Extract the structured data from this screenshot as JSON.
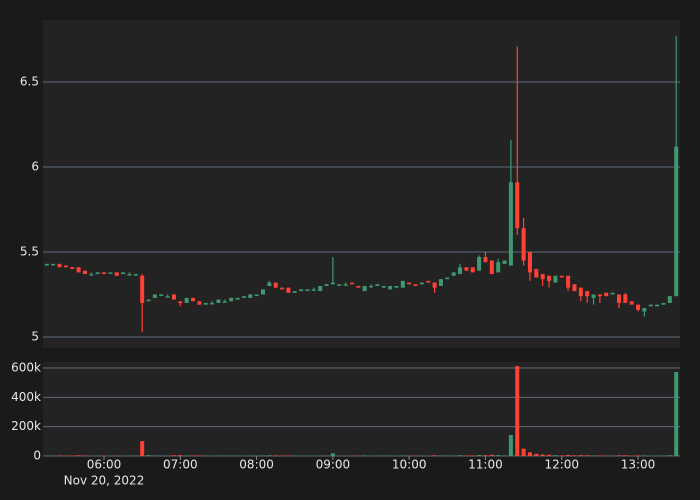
{
  "chart_data": {
    "type": "candlestick",
    "x": [
      "2022-11-20 05:15",
      "2022-11-20 05:20",
      "2022-11-20 05:25",
      "2022-11-20 05:30",
      "2022-11-20 05:35",
      "2022-11-20 05:40",
      "2022-11-20 05:45",
      "2022-11-20 05:50",
      "2022-11-20 05:55",
      "2022-11-20 06:00",
      "2022-11-20 06:05",
      "2022-11-20 06:10",
      "2022-11-20 06:15",
      "2022-11-20 06:20",
      "2022-11-20 06:25",
      "2022-11-20 06:30",
      "2022-11-20 06:35",
      "2022-11-20 06:40",
      "2022-11-20 06:45",
      "2022-11-20 06:50",
      "2022-11-20 06:55",
      "2022-11-20 07:00",
      "2022-11-20 07:05",
      "2022-11-20 07:10",
      "2022-11-20 07:15",
      "2022-11-20 07:20",
      "2022-11-20 07:25",
      "2022-11-20 07:30",
      "2022-11-20 07:35",
      "2022-11-20 07:40",
      "2022-11-20 07:45",
      "2022-11-20 07:50",
      "2022-11-20 07:55",
      "2022-11-20 08:00",
      "2022-11-20 08:05",
      "2022-11-20 08:10",
      "2022-11-20 08:15",
      "2022-11-20 08:20",
      "2022-11-20 08:25",
      "2022-11-20 08:30",
      "2022-11-20 08:35",
      "2022-11-20 08:40",
      "2022-11-20 08:45",
      "2022-11-20 08:50",
      "2022-11-20 08:55",
      "2022-11-20 09:00",
      "2022-11-20 09:05",
      "2022-11-20 09:10",
      "2022-11-20 09:15",
      "2022-11-20 09:20",
      "2022-11-20 09:25",
      "2022-11-20 09:30",
      "2022-11-20 09:35",
      "2022-11-20 09:40",
      "2022-11-20 09:45",
      "2022-11-20 09:50",
      "2022-11-20 09:55",
      "2022-11-20 10:00",
      "2022-11-20 10:05",
      "2022-11-20 10:10",
      "2022-11-20 10:15",
      "2022-11-20 10:20",
      "2022-11-20 10:25",
      "2022-11-20 10:30",
      "2022-11-20 10:35",
      "2022-11-20 10:40",
      "2022-11-20 10:45",
      "2022-11-20 10:50",
      "2022-11-20 10:55",
      "2022-11-20 11:00",
      "2022-11-20 11:05",
      "2022-11-20 11:10",
      "2022-11-20 11:15",
      "2022-11-20 11:20",
      "2022-11-20 11:25",
      "2022-11-20 11:30",
      "2022-11-20 11:35",
      "2022-11-20 11:40",
      "2022-11-20 11:45",
      "2022-11-20 11:50",
      "2022-11-20 11:55",
      "2022-11-20 12:00",
      "2022-11-20 12:05",
      "2022-11-20 12:10",
      "2022-11-20 12:15",
      "2022-11-20 12:20",
      "2022-11-20 12:25",
      "2022-11-20 12:30",
      "2022-11-20 12:35",
      "2022-11-20 12:40",
      "2022-11-20 12:45",
      "2022-11-20 12:50",
      "2022-11-20 12:55",
      "2022-11-20 13:00",
      "2022-11-20 13:05",
      "2022-11-20 13:10",
      "2022-11-20 13:15",
      "2022-11-20 13:20",
      "2022-11-20 13:25",
      "2022-11-20 13:30"
    ],
    "open": [
      5.42,
      5.43,
      5.43,
      5.42,
      5.41,
      5.41,
      5.39,
      5.37,
      5.37,
      5.38,
      5.38,
      5.38,
      5.37,
      5.37,
      5.37,
      5.36,
      5.21,
      5.23,
      5.25,
      5.24,
      5.25,
      5.21,
      5.2,
      5.23,
      5.21,
      5.19,
      5.2,
      5.2,
      5.21,
      5.21,
      5.22,
      5.23,
      5.23,
      5.25,
      5.25,
      5.3,
      5.32,
      5.29,
      5.29,
      5.26,
      5.27,
      5.28,
      5.28,
      5.27,
      5.3,
      5.31,
      5.31,
      5.31,
      5.32,
      5.3,
      5.27,
      5.3,
      5.3,
      5.29,
      5.28,
      5.29,
      5.29,
      5.32,
      5.31,
      5.31,
      5.33,
      5.32,
      5.3,
      5.34,
      5.36,
      5.37,
      5.41,
      5.41,
      5.39,
      5.47,
      5.45,
      5.38,
      5.43,
      5.42,
      5.91,
      5.64,
      5.5,
      5.4,
      5.37,
      5.36,
      5.32,
      5.36,
      5.36,
      5.31,
      5.29,
      5.27,
      5.23,
      5.25,
      5.26,
      5.25,
      5.25,
      5.25,
      5.21,
      5.19,
      5.15,
      5.18,
      5.18,
      5.19,
      5.2,
      5.24
    ],
    "high": [
      5.43,
      5.43,
      5.43,
      5.42,
      5.41,
      5.41,
      5.39,
      5.38,
      5.38,
      5.38,
      5.38,
      5.38,
      5.38,
      5.38,
      5.37,
      5.37,
      5.22,
      5.25,
      5.25,
      5.25,
      5.25,
      5.21,
      5.23,
      5.23,
      5.21,
      5.2,
      5.21,
      5.22,
      5.22,
      5.23,
      5.23,
      5.24,
      5.25,
      5.25,
      5.28,
      5.33,
      5.32,
      5.29,
      5.29,
      5.27,
      5.28,
      5.28,
      5.29,
      5.3,
      5.31,
      5.47,
      5.31,
      5.32,
      5.32,
      5.3,
      5.3,
      5.31,
      5.31,
      5.3,
      5.3,
      5.3,
      5.33,
      5.32,
      5.31,
      5.32,
      5.33,
      5.32,
      5.34,
      5.35,
      5.38,
      5.43,
      5.41,
      5.41,
      5.48,
      5.5,
      5.45,
      5.46,
      5.45,
      6.16,
      6.71,
      5.7,
      5.5,
      5.4,
      5.37,
      5.36,
      5.36,
      5.36,
      5.36,
      5.31,
      5.29,
      5.27,
      5.25,
      5.25,
      5.26,
      5.26,
      5.25,
      5.26,
      5.21,
      5.19,
      5.17,
      5.19,
      5.19,
      5.2,
      5.24,
      6.77
    ],
    "low": [
      5.42,
      5.42,
      5.41,
      5.41,
      5.4,
      5.38,
      5.37,
      5.37,
      5.37,
      5.37,
      5.38,
      5.36,
      5.37,
      5.37,
      5.36,
      5.03,
      5.21,
      5.23,
      5.24,
      5.24,
      5.22,
      5.18,
      5.2,
      5.21,
      5.19,
      5.19,
      5.2,
      5.2,
      5.21,
      5.21,
      5.22,
      5.23,
      5.23,
      5.24,
      5.25,
      5.3,
      5.29,
      5.28,
      5.26,
      5.26,
      5.27,
      5.27,
      5.28,
      5.27,
      5.3,
      5.31,
      5.3,
      5.31,
      5.31,
      5.29,
      5.27,
      5.3,
      5.3,
      5.29,
      5.28,
      5.29,
      5.29,
      5.31,
      5.3,
      5.31,
      5.32,
      5.26,
      5.3,
      5.34,
      5.36,
      5.37,
      5.39,
      5.38,
      5.39,
      5.44,
      5.37,
      5.38,
      5.43,
      5.42,
      5.6,
      5.42,
      5.33,
      5.35,
      5.3,
      5.29,
      5.32,
      5.35,
      5.27,
      5.27,
      5.21,
      5.2,
      5.19,
      5.2,
      5.24,
      5.25,
      5.17,
      5.2,
      5.19,
      5.15,
      5.12,
      5.18,
      5.18,
      5.19,
      5.2,
      5.24
    ],
    "close": [
      5.43,
      5.43,
      5.41,
      5.41,
      5.4,
      5.38,
      5.37,
      5.37,
      5.38,
      5.37,
      5.38,
      5.36,
      5.38,
      5.37,
      5.37,
      5.2,
      5.22,
      5.25,
      5.25,
      5.24,
      5.22,
      5.2,
      5.23,
      5.21,
      5.19,
      5.2,
      5.2,
      5.22,
      5.21,
      5.23,
      5.23,
      5.24,
      5.25,
      5.25,
      5.28,
      5.32,
      5.29,
      5.28,
      5.26,
      5.27,
      5.28,
      5.28,
      5.28,
      5.3,
      5.31,
      5.32,
      5.31,
      5.31,
      5.31,
      5.29,
      5.3,
      5.3,
      5.31,
      5.3,
      5.3,
      5.3,
      5.33,
      5.31,
      5.3,
      5.32,
      5.32,
      5.29,
      5.34,
      5.35,
      5.38,
      5.41,
      5.39,
      5.38,
      5.47,
      5.44,
      5.37,
      5.44,
      5.45,
      5.91,
      5.64,
      5.45,
      5.38,
      5.35,
      5.34,
      5.33,
      5.36,
      5.35,
      5.29,
      5.27,
      5.24,
      5.24,
      5.25,
      5.24,
      5.24,
      5.26,
      5.2,
      5.2,
      5.19,
      5.16,
      5.17,
      5.19,
      5.19,
      5.2,
      5.24,
      6.12
    ],
    "volume": [
      3000,
      2000,
      4000,
      2000,
      3000,
      5000,
      4000,
      1000,
      2000,
      3000,
      1000,
      3000,
      1000,
      2000,
      2000,
      102000,
      6000,
      4000,
      2000,
      2000,
      5000,
      6000,
      4000,
      3000,
      4000,
      2000,
      1000,
      3000,
      2000,
      3000,
      2000,
      2000,
      3000,
      2000,
      4000,
      5000,
      4000,
      3000,
      4000,
      2000,
      2000,
      2000,
      1000,
      3000,
      2000,
      18000,
      2000,
      1000,
      2000,
      3000,
      4000,
      1000,
      2000,
      2000,
      3000,
      2000,
      4000,
      2000,
      2000,
      2000,
      2000,
      5000,
      4000,
      3000,
      3000,
      5000,
      4000,
      4000,
      7000,
      6000,
      8000,
      6000,
      4000,
      143000,
      613000,
      50000,
      25000,
      15000,
      10000,
      8000,
      6000,
      4000,
      7000,
      5000,
      6000,
      5000,
      4000,
      4000,
      3000,
      3000,
      5000,
      5000,
      3000,
      4000,
      4000,
      2000,
      2000,
      3000,
      5000,
      573000
    ],
    "increasing_color": "#3d9970",
    "decreasing_color": "#ff4136",
    "xlim": [
      "2022-11-20 05:12",
      "2022-11-20 13:33"
    ],
    "xticks": [
      {
        "value": "2022-11-20 06:00",
        "label": "06:00"
      },
      {
        "value": "2022-11-20 07:00",
        "label": "07:00"
      },
      {
        "value": "2022-11-20 08:00",
        "label": "08:00"
      },
      {
        "value": "2022-11-20 09:00",
        "label": "09:00"
      },
      {
        "value": "2022-11-20 10:00",
        "label": "10:00"
      },
      {
        "value": "2022-11-20 11:00",
        "label": "11:00"
      },
      {
        "value": "2022-11-20 12:00",
        "label": "12:00"
      },
      {
        "value": "2022-11-20 13:00",
        "label": "13:00"
      }
    ],
    "x_date_label": "Nov 20, 2022",
    "ylim": [
      4.935,
      6.865
    ],
    "yticks": [
      5,
      5.5,
      6,
      6.5
    ],
    "volume_ylim": [
      0,
      641000
    ],
    "volume_yticks": [
      {
        "value": 0,
        "label": "0"
      },
      {
        "value": 200000,
        "label": "200k"
      },
      {
        "value": 400000,
        "label": "400k"
      },
      {
        "value": 600000,
        "label": "600k"
      }
    ],
    "grid": true
  }
}
